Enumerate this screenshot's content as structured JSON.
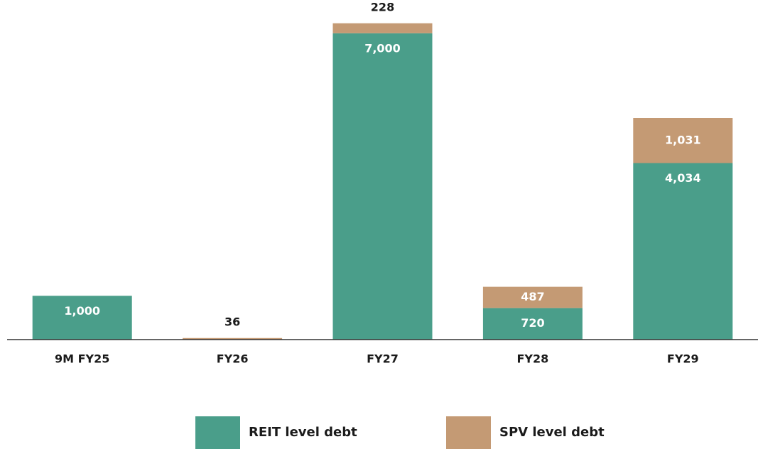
{
  "chart_data": {
    "type": "stacked_bar",
    "categories": [
      "9M FY25",
      "FY26",
      "FY27",
      "FY28",
      "FY29"
    ],
    "series": [
      {
        "name": "REIT level debt",
        "color": "#4a9e8a",
        "values": [
          1000,
          null,
          7000,
          720,
          4034
        ]
      },
      {
        "name": "SPV level debt",
        "color": "#c49a74",
        "values": [
          null,
          36,
          228,
          487,
          1031
        ]
      }
    ],
    "ylim": [
      0,
      7760
    ]
  }
}
